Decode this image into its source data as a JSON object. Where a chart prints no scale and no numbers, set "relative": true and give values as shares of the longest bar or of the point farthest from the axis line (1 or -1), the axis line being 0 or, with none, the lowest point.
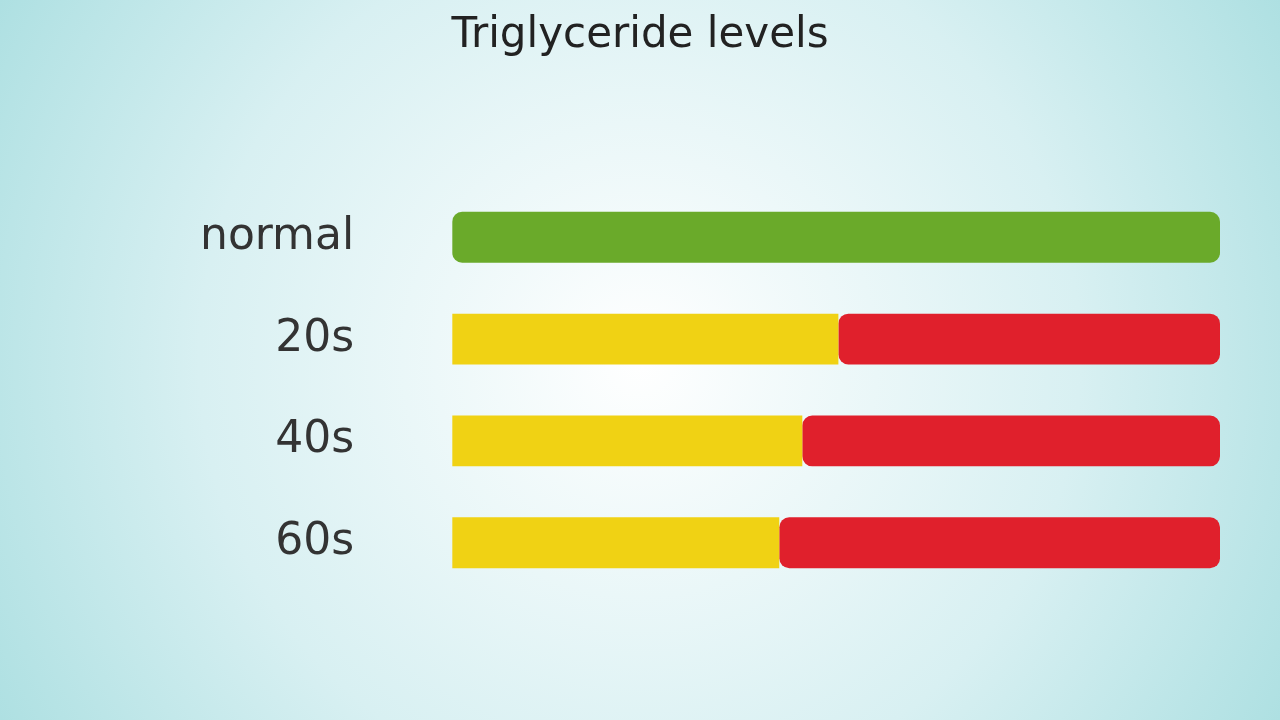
{
  "chart_data": {
    "type": "bar",
    "orientation": "horizontal",
    "stacked": true,
    "relative": true,
    "title": "Triglyceride levels",
    "legend": false,
    "categories": [
      "normal",
      "20s",
      "40s",
      "60s"
    ],
    "series": [
      {
        "color": "#6aaa2a",
        "values": [
          1,
          null,
          null,
          null
        ]
      },
      {
        "color": "#f0d214",
        "values": [
          null,
          0.503,
          0.456,
          0.426
        ]
      },
      {
        "color": "#e0202c",
        "values": [
          null,
          0.497,
          0.544,
          0.574
        ]
      }
    ]
  }
}
